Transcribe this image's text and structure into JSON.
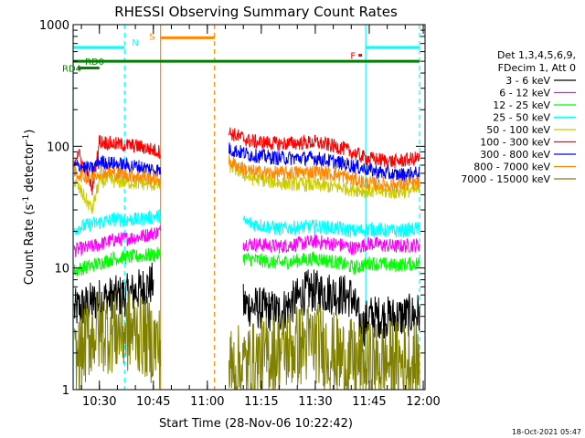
{
  "chart_data": {
    "type": "line",
    "title": "RHESSI Observing Summary Count Rates",
    "xlabel": "Start Time (28-Nov-06 10:22:42)",
    "ylabel": "Count Rate (s⁻¹ detector⁻¹)",
    "ylabel_main": "Count Rate (s",
    "ylabel_sup1": "-1",
    "ylabel_mid": " detector",
    "ylabel_sup2": "-1",
    "ylabel_end": ")",
    "yscale": "log",
    "xlim": [
      "10:22:42",
      "12:00:30"
    ],
    "ylim": [
      1,
      1000
    ],
    "x_ticks": [
      "10:30",
      "10:45",
      "11:00",
      "11:15",
      "11:30",
      "11:45",
      "12:00"
    ],
    "y_ticks": [
      "1",
      "10",
      "100",
      "1000"
    ],
    "legend_placement": "right",
    "legend_header": [
      "Det 1,3,4,5,6,9,",
      "FDecim 1, Att 0"
    ],
    "series": [
      {
        "name": "3 - 6 keV",
        "color": "#000000",
        "x": [
          "10:23",
          "10:30",
          "10:38",
          "10:45",
          "10:49",
          "11:04",
          "11:10",
          "11:20",
          "11:28",
          "11:33",
          "11:40",
          "11:43",
          "11:45",
          "11:52",
          "11:59"
        ],
        "values": [
          4.5,
          5.5,
          6,
          7.5,
          null,
          null,
          5,
          4.3,
          6.5,
          6.3,
          5.8,
          3.2,
          4,
          3.9,
          4.2
        ]
      },
      {
        "name": "6 - 12 keV",
        "color": "#ff00ff",
        "x": [
          "10:23",
          "10:28",
          "10:34",
          "10:41",
          "10:47",
          "10:49",
          "11:04",
          "11:10",
          "11:20",
          "11:30",
          "11:37",
          "11:41",
          "11:45",
          "11:52",
          "11:59"
        ],
        "values": [
          14,
          15,
          17,
          18,
          20,
          null,
          null,
          16,
          15,
          16.5,
          15.5,
          14.5,
          16,
          15,
          15.5
        ]
      },
      {
        "name": "12 - 25 keV",
        "color": "#00ff00",
        "x": [
          "10:23",
          "10:28",
          "10:34",
          "10:41",
          "10:47",
          "10:49",
          "11:04",
          "11:10",
          "11:20",
          "11:30",
          "11:37",
          "11:41",
          "11:45",
          "11:52",
          "11:59"
        ],
        "values": [
          9.5,
          10.5,
          12,
          12.5,
          13,
          null,
          null,
          12,
          11,
          12,
          11,
          10,
          11,
          10.5,
          11
        ]
      },
      {
        "name": "25 - 50 keV",
        "color": "#00ffff",
        "x": [
          "10:23",
          "10:28",
          "10:34",
          "10:41",
          "10:47",
          "10:49",
          "11:04",
          "11:10",
          "11:20",
          "11:30",
          "11:37",
          "11:41",
          "11:45",
          "11:52",
          "11:59"
        ],
        "values": [
          21,
          23,
          25,
          25,
          27,
          null,
          null,
          24,
          21,
          22,
          21,
          20,
          21,
          20,
          21
        ]
      },
      {
        "name": "50 - 100 keV",
        "color": "#cccc00",
        "x": [
          "10:23",
          "10:28",
          "10:30",
          "10:34",
          "10:41",
          "10:47",
          "10:49",
          "11:04",
          "11:06",
          "11:12",
          "11:20",
          "11:30",
          "11:37",
          "11:44",
          "11:52",
          "11:59"
        ],
        "values": [
          52,
          30,
          52,
          52,
          50,
          48,
          null,
          null,
          70,
          55,
          50,
          48,
          46,
          43,
          42,
          44
        ]
      },
      {
        "name": "100 - 300 keV",
        "color": "#ff0000",
        "x": [
          "10:23",
          "10:24",
          "10:28",
          "10:30",
          "10:34",
          "10:41",
          "10:47",
          "10:49",
          "11:04",
          "11:06",
          "11:12",
          "11:20",
          "11:30",
          "11:37",
          "11:44",
          "11:52",
          "11:59"
        ],
        "values": [
          75,
          90,
          45,
          110,
          105,
          100,
          90,
          null,
          null,
          130,
          110,
          105,
          108,
          98,
          80,
          75,
          80
        ]
      },
      {
        "name": "300 - 800 keV",
        "color": "#0000ff",
        "x": [
          "10:23",
          "10:28",
          "10:30",
          "10:34",
          "10:41",
          "10:47",
          "10:49",
          "11:04",
          "11:06",
          "11:12",
          "11:20",
          "11:30",
          "11:37",
          "11:44",
          "11:52",
          "11:59"
        ],
        "values": [
          70,
          65,
          75,
          72,
          68,
          63,
          null,
          null,
          95,
          85,
          80,
          80,
          73,
          65,
          58,
          60
        ]
      },
      {
        "name": "800 - 7000 keV",
        "color": "#ff8800",
        "x": [
          "10:23",
          "10:28",
          "10:30",
          "10:34",
          "10:41",
          "10:47",
          "10:49",
          "11:04",
          "11:06",
          "11:12",
          "11:20",
          "11:30",
          "11:37",
          "11:44",
          "11:52",
          "11:59"
        ],
        "values": [
          60,
          55,
          62,
          60,
          57,
          53,
          null,
          null,
          75,
          62,
          60,
          62,
          58,
          50,
          48,
          50
        ]
      },
      {
        "name": "7000 - 15000 keV",
        "color": "#808000",
        "x": [
          "10:23",
          "10:28",
          "10:34",
          "10:41",
          "10:47",
          "10:49",
          "11:06",
          "11:12",
          "11:20",
          "11:30",
          "11:37",
          "11:44",
          "11:52",
          "11:59"
        ],
        "values": [
          1.6,
          3,
          3,
          3,
          2.2,
          null,
          1.5,
          1.6,
          2.1,
          2.5,
          1.8,
          1.6,
          1.7,
          1.6
        ]
      }
    ],
    "annotations": [
      {
        "label": "N",
        "color": "#00ffff",
        "bar": [
          [
            "10:22:42",
            "10:37"
          ],
          [
            "11:44",
            "11:59"
          ]
        ],
        "y_level": 650
      },
      {
        "label": "S",
        "color": "#ff8800",
        "bar": [
          [
            "10:47",
            "11:02"
          ]
        ],
        "y_level": 780
      },
      {
        "label": "F",
        "color": "#ff0000",
        "bar": [
          [
            "11:42",
            "11:43"
          ]
        ],
        "y_level": 560
      },
      {
        "label": "RD0",
        "color": "#008000",
        "bar": [
          [
            "10:22:42",
            "11:59"
          ]
        ],
        "y_level": 500
      },
      {
        "label": "RD4",
        "color": "#008000",
        "bar": [
          [
            "10:24",
            "10:30"
          ]
        ],
        "y_level": 440
      }
    ],
    "vertical_lines": [
      {
        "x": "10:22:42",
        "color": "#00ffff",
        "style": "solid"
      },
      {
        "x": "10:37",
        "color": "#00ffff",
        "style": "dashed"
      },
      {
        "x": "10:47",
        "color": "#ff8800",
        "style": "solid"
      },
      {
        "x": "11:02",
        "color": "#ff8800",
        "style": "dashed"
      },
      {
        "x": "11:44",
        "color": "#00ffff",
        "style": "solid"
      },
      {
        "x": "11:59",
        "color": "#00ffff",
        "style": "dashed"
      }
    ],
    "footer_stamp": "18-Oct-2021 05:47"
  }
}
